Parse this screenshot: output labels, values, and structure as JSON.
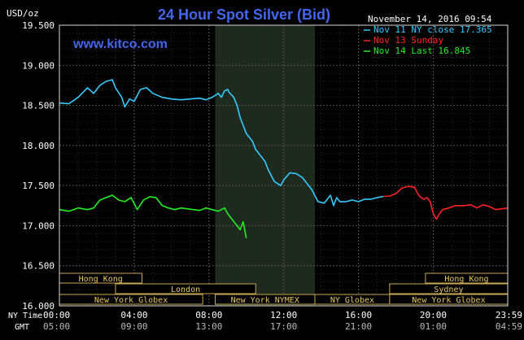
{
  "chart_data": {
    "type": "line",
    "title": "24 Hour Spot Silver (Bid)",
    "ylabel": "USD/oz",
    "watermark": "www.kitco.com",
    "timestamp": "November 14, 2016 09:54",
    "ylim": [
      16.0,
      19.5
    ],
    "yticks": [
      "19.500",
      "19.000",
      "18.500",
      "18.000",
      "17.500",
      "17.000",
      "16.500",
      "16.000"
    ],
    "ytick_values": [
      19.5,
      19.0,
      18.5,
      18.0,
      17.5,
      17.0,
      16.5,
      16.0
    ],
    "xlim": [
      0,
      1439
    ],
    "x_axis_label_ny": "NY Time",
    "x_axis_label_gmt": "GMT",
    "xticks_ny": [
      "00:00",
      "04:00",
      "08:00",
      "12:00",
      "16:00",
      "20:00",
      "23:59"
    ],
    "xticks_gmt": [
      "05:00",
      "09:00",
      "13:00",
      "17:00",
      "21:00",
      "01:00",
      "04:59"
    ],
    "xtick_minutes": [
      0,
      240,
      480,
      720,
      960,
      1200,
      1439
    ],
    "grid": true,
    "legend": [
      {
        "label": "Nov 11 NY close 17.365",
        "color": "#33ccff"
      },
      {
        "label": "Nov 13 Sunday",
        "color": "#ff2222"
      },
      {
        "label": "Nov 14 Last 16.845",
        "color": "#22ee22"
      }
    ],
    "highlight": {
      "label": "New York NYMEX",
      "start_minute": 500,
      "end_minute": 820
    },
    "sessions": [
      {
        "label": "Hong Kong",
        "start_minute": 0,
        "end_minute": 265,
        "row": 1
      },
      {
        "label": "Hong Kong",
        "start_minute": 1175,
        "end_minute": 1439,
        "row": 1
      },
      {
        "label": "London",
        "start_minute": 180,
        "end_minute": 630,
        "row": 2
      },
      {
        "label": "Sydney",
        "start_minute": 1060,
        "end_minute": 1439,
        "row": 2
      },
      {
        "label": "New York Globex",
        "start_minute": 0,
        "end_minute": 460,
        "row": 3
      },
      {
        "label": "New York NYMEX",
        "start_minute": 500,
        "end_minute": 820,
        "row": 3
      },
      {
        "label": "NY Globex",
        "start_minute": 820,
        "end_minute": 1060,
        "row": 3
      },
      {
        "label": "New York Globex",
        "start_minute": 1060,
        "end_minute": 1439,
        "row": 3
      }
    ],
    "series": [
      {
        "name": "Nov 11 NY close 17.365",
        "color": "#33ccff",
        "x": [
          0,
          30,
          60,
          90,
          110,
          130,
          150,
          170,
          180,
          200,
          210,
          225,
          240,
          260,
          280,
          300,
          330,
          360,
          390,
          420,
          450,
          470,
          490,
          510,
          520,
          530,
          540,
          545,
          560,
          570,
          580,
          600,
          620,
          630,
          640,
          650,
          660,
          670,
          690,
          710,
          720,
          740,
          760,
          780,
          790,
          800,
          810,
          830,
          850,
          870,
          880,
          890,
          900,
          920,
          940,
          960,
          980,
          1000,
          1020,
          1040
        ],
        "y": [
          18.53,
          18.52,
          18.6,
          18.72,
          18.65,
          18.75,
          18.8,
          18.82,
          18.72,
          18.6,
          18.48,
          18.58,
          18.55,
          18.7,
          18.72,
          18.65,
          18.6,
          18.58,
          18.57,
          18.58,
          18.59,
          18.57,
          18.6,
          18.65,
          18.6,
          18.68,
          18.7,
          18.66,
          18.6,
          18.5,
          18.35,
          18.15,
          18.05,
          17.95,
          17.9,
          17.85,
          17.8,
          17.7,
          17.55,
          17.5,
          17.57,
          17.66,
          17.65,
          17.6,
          17.55,
          17.5,
          17.45,
          17.3,
          17.28,
          17.38,
          17.25,
          17.35,
          17.3,
          17.3,
          17.32,
          17.3,
          17.33,
          17.33,
          17.35,
          17.365
        ]
      },
      {
        "name": "Nov 13 Sunday",
        "color": "#ff2222",
        "x": [
          1040,
          1060,
          1080,
          1100,
          1120,
          1140,
          1150,
          1160,
          1170,
          1180,
          1190,
          1200,
          1210,
          1220,
          1230,
          1250,
          1270,
          1300,
          1320,
          1340,
          1360,
          1380,
          1400,
          1420,
          1439
        ],
        "y": [
          17.365,
          17.37,
          17.4,
          17.47,
          17.49,
          17.48,
          17.4,
          17.35,
          17.33,
          17.35,
          17.3,
          17.15,
          17.08,
          17.15,
          17.2,
          17.22,
          17.25,
          17.25,
          17.26,
          17.22,
          17.26,
          17.24,
          17.2,
          17.21,
          17.22
        ]
      },
      {
        "name": "Nov 14 Last 16.845",
        "color": "#22ee22",
        "x": [
          0,
          30,
          60,
          90,
          110,
          130,
          150,
          170,
          190,
          210,
          230,
          250,
          270,
          290,
          310,
          330,
          350,
          370,
          390,
          410,
          430,
          450,
          470,
          490,
          510,
          530,
          540,
          550,
          560,
          570,
          580,
          590,
          600
        ],
        "y": [
          17.2,
          17.18,
          17.22,
          17.2,
          17.22,
          17.32,
          17.35,
          17.38,
          17.32,
          17.3,
          17.35,
          17.2,
          17.32,
          17.36,
          17.35,
          17.25,
          17.22,
          17.2,
          17.22,
          17.21,
          17.2,
          17.19,
          17.22,
          17.2,
          17.18,
          17.22,
          17.15,
          17.1,
          17.05,
          17.0,
          16.95,
          17.05,
          16.845
        ]
      }
    ]
  }
}
